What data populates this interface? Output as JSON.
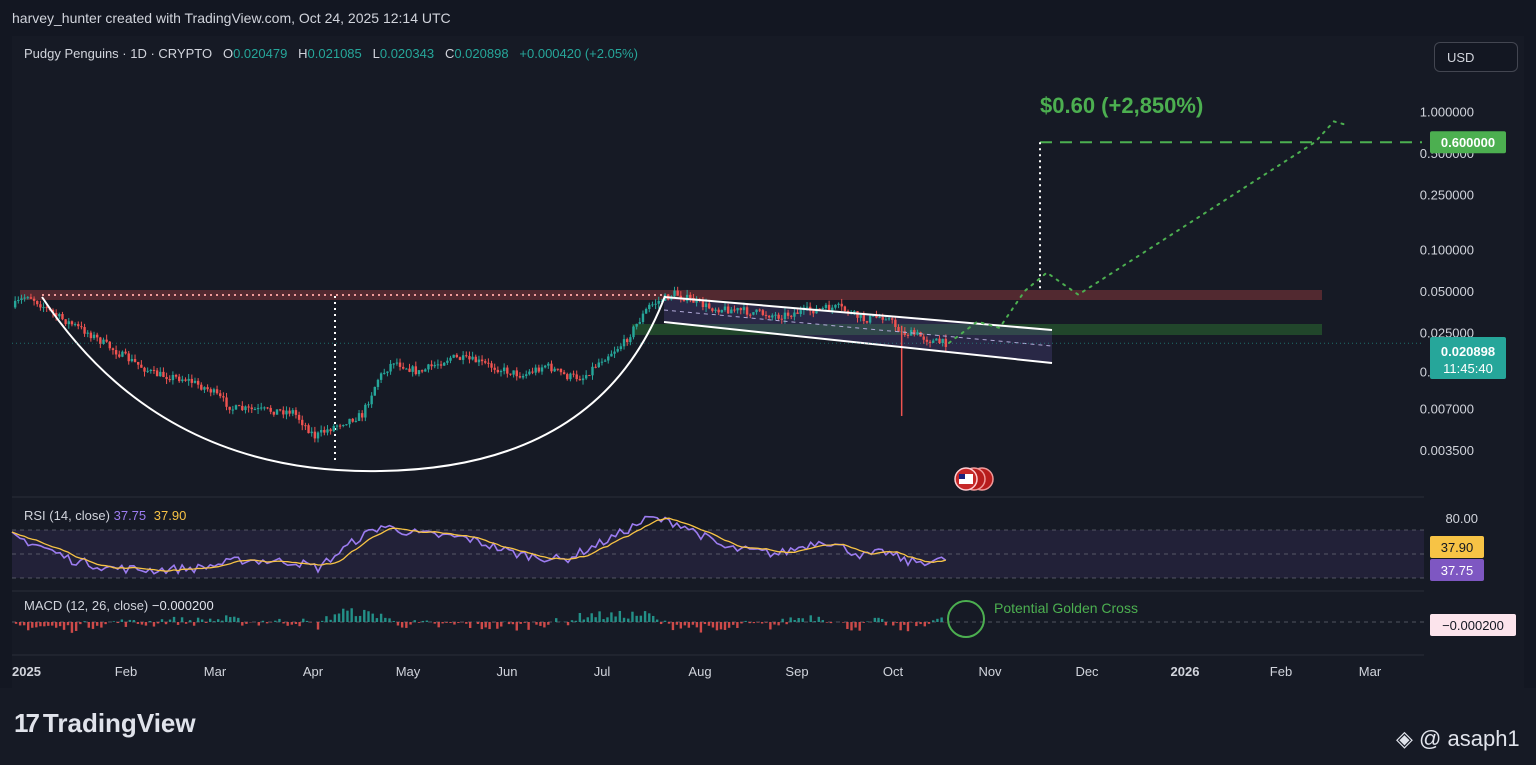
{
  "header": {
    "attribution": "harvey_hunter created with TradingView.com, Oct 24, 2025 12:14 UTC"
  },
  "legend": {
    "symbol": "Pudgy Penguins · 1D · CRYPTO",
    "o_label": "O",
    "o_value": "0.020479",
    "h_label": "H",
    "h_value": "0.021085",
    "l_label": "L",
    "l_value": "0.020343",
    "c_label": "C",
    "c_value": "0.020898",
    "change": "+0.000420 (+2.05%)"
  },
  "currency_button": "USD",
  "target_label": "$0.60 (+2,850%)",
  "annotation": "Potential Golden Cross",
  "rsi": {
    "label": "RSI (14, close)",
    "value": "37.75",
    "ma_value": "37.90",
    "level_80": "80.00"
  },
  "macd": {
    "label": "MACD (12, 26, close)",
    "value": "−0.000200"
  },
  "footer": {
    "brand": "TradingView",
    "watermark": "@ asaph1"
  },
  "colors": {
    "background": "#131722",
    "up": "#26a69a",
    "down": "#ef5350",
    "target_green": "#4caf50",
    "rsi_line": "#7e57c2",
    "rsi_ma": "#f7c345",
    "channel": "#ffffff"
  },
  "chart_data": {
    "type": "candlestick",
    "title": "Pudgy Penguins · 1D · CRYPTO",
    "scale": "log",
    "x_ticks": [
      "2025",
      "Feb",
      "Mar",
      "Apr",
      "May",
      "Jun",
      "Jul",
      "Aug",
      "Sep",
      "Oct",
      "Nov",
      "Dec",
      "2026",
      "Feb",
      "Mar"
    ],
    "y_ticks": [
      "1.000000",
      "0.500000",
      "0.250000",
      "0.100000",
      "0.050000",
      "0.025000",
      "0.013000",
      "0.007000",
      "0.003500"
    ],
    "last_price": "0.020898",
    "countdown": "11:45:40",
    "target_price": "0.600000",
    "target_price_value": 0.6,
    "ohlc_last": {
      "open": 0.020479,
      "high": 0.021085,
      "low": 0.020343,
      "close": 0.020898,
      "change": 0.00042,
      "change_pct": 2.05
    },
    "price_path": [
      {
        "date": "2025-01-01",
        "price": 0.038
      },
      {
        "date": "2025-01-06",
        "price": 0.047
      },
      {
        "date": "2025-01-15",
        "price": 0.033
      },
      {
        "date": "2025-01-25",
        "price": 0.025
      },
      {
        "date": "2025-02-05",
        "price": 0.017
      },
      {
        "date": "2025-02-15",
        "price": 0.0125
      },
      {
        "date": "2025-02-25",
        "price": 0.0115
      },
      {
        "date": "2025-03-05",
        "price": 0.0095
      },
      {
        "date": "2025-03-12",
        "price": 0.007
      },
      {
        "date": "2025-03-22",
        "price": 0.0068
      },
      {
        "date": "2025-03-31",
        "price": 0.0067
      },
      {
        "date": "2025-04-07",
        "price": 0.0044
      },
      {
        "date": "2025-04-15",
        "price": 0.0055
      },
      {
        "date": "2025-04-22",
        "price": 0.0063
      },
      {
        "date": "2025-04-27",
        "price": 0.0115
      },
      {
        "date": "2025-05-02",
        "price": 0.0155
      },
      {
        "date": "2025-05-10",
        "price": 0.0128
      },
      {
        "date": "2025-05-20",
        "price": 0.0165
      },
      {
        "date": "2025-05-28",
        "price": 0.0155
      },
      {
        "date": "2025-06-05",
        "price": 0.0135
      },
      {
        "date": "2025-06-12",
        "price": 0.0122
      },
      {
        "date": "2025-06-19",
        "price": 0.0145
      },
      {
        "date": "2025-06-26",
        "price": 0.012
      },
      {
        "date": "2025-07-01",
        "price": 0.0118
      },
      {
        "date": "2025-07-07",
        "price": 0.016
      },
      {
        "date": "2025-07-14",
        "price": 0.021
      },
      {
        "date": "2025-07-22",
        "price": 0.039
      },
      {
        "date": "2025-07-30",
        "price": 0.048
      },
      {
        "date": "2025-08-10",
        "price": 0.038
      },
      {
        "date": "2025-08-20",
        "price": 0.036
      },
      {
        "date": "2025-09-01",
        "price": 0.033
      },
      {
        "date": "2025-09-10",
        "price": 0.036
      },
      {
        "date": "2025-09-20",
        "price": 0.038
      },
      {
        "date": "2025-09-28",
        "price": 0.031
      },
      {
        "date": "2025-10-05",
        "price": 0.033
      },
      {
        "date": "2025-10-10",
        "price": 0.025
      },
      {
        "date": "2025-10-15",
        "price": 0.024
      },
      {
        "date": "2025-10-20",
        "price": 0.0215
      },
      {
        "date": "2025-10-24",
        "price": 0.020898
      }
    ],
    "spike_low": {
      "date": "2025-10-10",
      "price": 0.0062
    },
    "projection_path": [
      {
        "date": "2025-10-25",
        "price": 0.021
      },
      {
        "date": "2025-11-03",
        "price": 0.03
      },
      {
        "date": "2025-11-10",
        "price": 0.027
      },
      {
        "date": "2025-11-18",
        "price": 0.05
      },
      {
        "date": "2025-11-25",
        "price": 0.068
      },
      {
        "date": "2025-12-05",
        "price": 0.047
      },
      {
        "date": "2026-02-18",
        "price": 0.6
      },
      {
        "date": "2026-02-24",
        "price": 0.85
      },
      {
        "date": "2026-02-28",
        "price": 0.8
      }
    ],
    "rsi_ticks": [
      "80.00"
    ],
    "rsi_last": 37.75,
    "rsi_ma_last": 37.9,
    "rsi_path": [
      {
        "date": "2025-01-01",
        "value": 62
      },
      {
        "date": "2025-01-10",
        "value": 52
      },
      {
        "date": "2025-01-20",
        "value": 38
      },
      {
        "date": "2025-02-01",
        "value": 30
      },
      {
        "date": "2025-02-15",
        "value": 28
      },
      {
        "date": "2025-03-01",
        "value": 30
      },
      {
        "date": "2025-03-15",
        "value": 38
      },
      {
        "date": "2025-04-01",
        "value": 36
      },
      {
        "date": "2025-04-08",
        "value": 30
      },
      {
        "date": "2025-04-20",
        "value": 58
      },
      {
        "date": "2025-04-28",
        "value": 72
      },
      {
        "date": "2025-05-10",
        "value": 64
      },
      {
        "date": "2025-05-25",
        "value": 60
      },
      {
        "date": "2025-06-10",
        "value": 44
      },
      {
        "date": "2025-06-25",
        "value": 38
      },
      {
        "date": "2025-07-10",
        "value": 60
      },
      {
        "date": "2025-07-22",
        "value": 80
      },
      {
        "date": "2025-08-01",
        "value": 74
      },
      {
        "date": "2025-08-15",
        "value": 50
      },
      {
        "date": "2025-09-01",
        "value": 44
      },
      {
        "date": "2025-09-15",
        "value": 58
      },
      {
        "date": "2025-09-28",
        "value": 42
      },
      {
        "date": "2025-10-05",
        "value": 46
      },
      {
        "date": "2025-10-12",
        "value": 36
      },
      {
        "date": "2025-10-24",
        "value": 37.75
      }
    ],
    "macd_last": -0.0002
  }
}
